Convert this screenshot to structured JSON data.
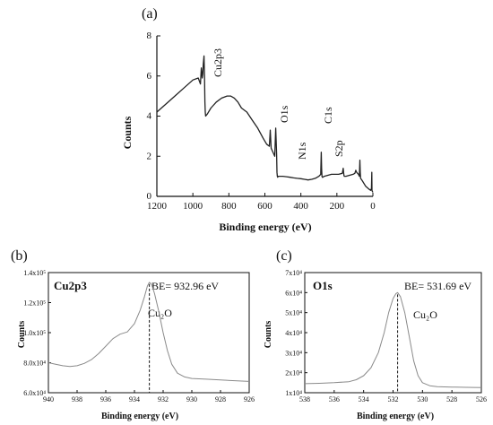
{
  "chart_data": [
    {
      "type": "line",
      "panel_label": "(a)",
      "xlabel": "Binding energy (eV)",
      "ylabel": "Counts",
      "xlim": [
        1200,
        0
      ],
      "ylim": [
        0,
        8
      ],
      "x_ticks": [
        1200,
        1000,
        800,
        600,
        400,
        200,
        0
      ],
      "y_ticks": [
        0,
        2,
        4,
        6,
        8
      ],
      "axis_color": "#111111",
      "line_color": "#222222",
      "series": [
        {
          "x": [
            1200,
            1150,
            1100,
            1050,
            1000,
            970,
            958,
            953,
            948,
            945,
            942,
            938,
            935,
            933,
            931,
            929,
            920,
            900,
            870,
            840,
            810,
            790,
            770,
            750,
            730,
            700,
            670,
            640,
            610,
            590,
            575,
            570,
            565,
            560,
            555,
            550,
            545,
            540,
            535,
            533,
            531,
            529,
            527,
            520,
            500,
            480,
            460,
            440,
            420,
            400,
            380,
            360,
            340,
            320,
            300,
            290,
            287,
            285,
            283,
            281,
            279,
            270,
            250,
            230,
            210,
            190,
            170,
            165,
            163,
            161,
            159,
            150,
            130,
            110,
            100,
            95,
            90,
            80,
            75,
            72,
            70,
            68,
            60,
            40,
            20,
            12,
            8,
            6,
            5,
            3,
            0
          ],
          "y": [
            4.2,
            4.6,
            5.0,
            5.4,
            5.8,
            5.9,
            5.6,
            6.4,
            5.9,
            6.1,
            6.6,
            7.0,
            5.9,
            4.7,
            4.2,
            4.0,
            4.1,
            4.4,
            4.7,
            4.9,
            5.0,
            5.0,
            4.9,
            4.7,
            4.4,
            4.2,
            3.8,
            3.4,
            2.9,
            2.6,
            2.5,
            3.3,
            2.4,
            2.3,
            2.2,
            2.1,
            2.0,
            3.4,
            2.1,
            1.2,
            1.0,
            0.95,
            1.0,
            1.0,
            1.0,
            0.98,
            0.95,
            0.92,
            0.9,
            0.88,
            0.85,
            0.82,
            0.85,
            0.9,
            1.0,
            1.1,
            2.2,
            1.4,
            1.0,
            0.95,
            0.95,
            1.0,
            1.05,
            1.1,
            1.1,
            1.1,
            1.15,
            1.4,
            1.2,
            1.05,
            1.0,
            1.0,
            1.05,
            1.1,
            1.15,
            1.3,
            1.2,
            1.1,
            1.0,
            1.8,
            1.2,
            0.9,
            0.8,
            0.5,
            0.35,
            0.3,
            0.4,
            1.2,
            0.3,
            0.25,
            0.2
          ]
        }
      ],
      "annotations": [
        {
          "text": "Cu2p3",
          "x": 938,
          "y": 6.4
        },
        {
          "text": "O1s",
          "x": 531,
          "y": 3.3
        },
        {
          "text": "N1s",
          "x": 400,
          "y": 1.6
        },
        {
          "text": "C1s",
          "x": 285,
          "y": 3.3
        },
        {
          "text": "S2p",
          "x": 163,
          "y": 1.5
        }
      ]
    },
    {
      "type": "line",
      "panel_label": "(b)",
      "xlabel": "Binding energy (eV)",
      "ylabel": "Counts",
      "xlim": [
        940,
        926
      ],
      "ylim": [
        60000,
        140000
      ],
      "x_ticks": [
        940,
        938,
        936,
        934,
        932,
        930,
        928,
        926
      ],
      "y_ticks": [
        60000,
        80000,
        100000,
        120000,
        140000
      ],
      "y_tick_labels": [
        "6.0x10⁴",
        "8.0x10⁴",
        "1.0x10⁵",
        "1.2x10⁵",
        "1.4x10⁵"
      ],
      "line_color": "#8a8a8a",
      "series": [
        {
          "x": [
            940,
            939.5,
            939,
            938.5,
            938,
            937.5,
            937,
            936.5,
            936,
            935.5,
            935,
            934.5,
            934,
            933.6,
            933.3,
            933.1,
            932.96,
            932.8,
            932.6,
            932.3,
            932,
            931.7,
            931.4,
            931,
            930.5,
            930,
            929,
            928,
            927,
            926
          ],
          "y": [
            80000,
            79000,
            78000,
            77500,
            78000,
            79500,
            82000,
            86000,
            91000,
            96000,
            99000,
            100500,
            106000,
            115000,
            124000,
            131000,
            133500,
            132000,
            126000,
            114000,
            100000,
            88000,
            79000,
            73000,
            70500,
            69500,
            69000,
            68500,
            68000,
            67500
          ]
        }
      ],
      "annotations": [
        {
          "text": "Cu2p3"
        },
        {
          "text": "BE= 932.96 eV"
        },
        {
          "text": "Cu₂O"
        }
      ],
      "peak_marker_x": 932.96
    },
    {
      "type": "line",
      "panel_label": "(c)",
      "xlabel": "Binding energy (eV)",
      "ylabel": "Counts",
      "xlim": [
        538,
        526
      ],
      "ylim": [
        10000,
        70000
      ],
      "x_ticks": [
        538,
        536,
        534,
        532,
        530,
        528,
        526
      ],
      "y_ticks": [
        10000,
        20000,
        30000,
        40000,
        50000,
        60000,
        70000
      ],
      "y_tick_labels": [
        "1x10⁴",
        "2x10⁴",
        "3x10⁴",
        "4x10⁴",
        "5x10⁴",
        "6x10⁴",
        "7x10⁴"
      ],
      "line_color": "#8a8a8a",
      "series": [
        {
          "x": [
            538,
            537,
            536,
            535,
            534.5,
            534,
            533.5,
            533,
            532.6,
            532.3,
            532,
            531.8,
            531.69,
            531.5,
            531.2,
            530.9,
            530.6,
            530.3,
            530,
            529.5,
            529,
            528,
            527,
            526
          ],
          "y": [
            14500,
            14700,
            15000,
            15500,
            16500,
            18500,
            22500,
            30000,
            40000,
            50000,
            57000,
            59500,
            60000,
            58000,
            50000,
            38000,
            26000,
            18500,
            15000,
            13500,
            13000,
            12800,
            12700,
            12600
          ]
        }
      ],
      "annotations": [
        {
          "text": "O1s"
        },
        {
          "text": "BE= 531.69 eV"
        },
        {
          "text": "Cu₂O"
        }
      ],
      "peak_marker_x": 531.69
    }
  ]
}
